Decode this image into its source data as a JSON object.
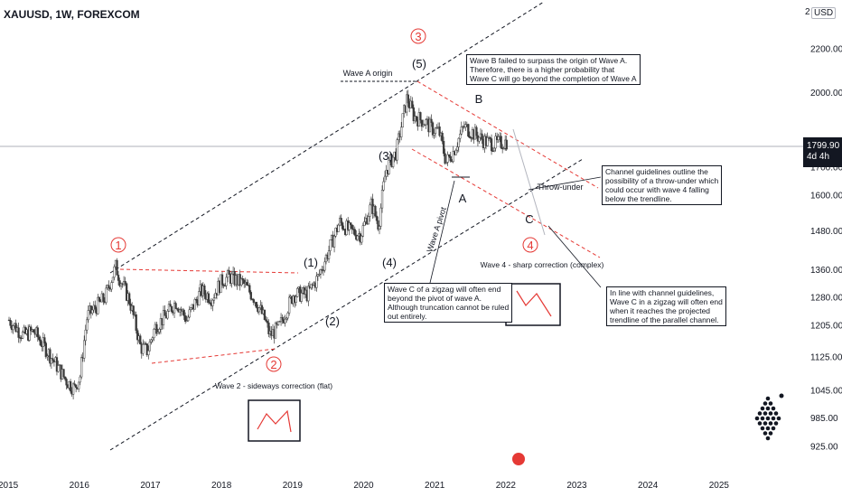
{
  "header": {
    "symbol": "XAUUSD, 1W, FOREXCOM",
    "currency": "USD",
    "currency_prefix": "2"
  },
  "price_badge": {
    "price": "1799.90",
    "countdown": "4d 4h"
  },
  "colors": {
    "candle_up": "#26a69a",
    "candle": "#3a3a3a",
    "red_label": "#e53935",
    "dashed_black": "#131722",
    "dashed_red": "#e53935"
  },
  "chart_data": {
    "type": "line",
    "title": "",
    "x_ticks": [
      "2015",
      "2016",
      "2017",
      "2018",
      "2019",
      "2020",
      "2021",
      "2022",
      "2023",
      "2024",
      "2025"
    ],
    "y_ticks": [
      925,
      985,
      1045,
      1125,
      1205,
      1280,
      1360,
      1480,
      1600,
      1700,
      1800,
      2000,
      2200
    ],
    "y_scale": "log",
    "ylim": [
      880,
      2450
    ],
    "xlim": [
      2015.0,
      2026.3
    ],
    "series": [
      {
        "x": [
          2015.0,
          2015.1,
          2015.2,
          2015.35,
          2015.5,
          2015.65,
          2015.8,
          2015.92,
          2016.0,
          2016.1,
          2016.2,
          2016.35,
          2016.5,
          2016.55,
          2016.7,
          2016.85,
          2016.95,
          2017.05,
          2017.2,
          2017.35,
          2017.5,
          2017.6,
          2017.7,
          2017.85,
          2018.0,
          2018.1,
          2018.3,
          2018.45,
          2018.6,
          2018.67,
          2018.8,
          2019.0,
          2019.2,
          2019.35,
          2019.5,
          2019.65,
          2019.8,
          2019.95,
          2020.1,
          2020.2,
          2020.3,
          2020.45,
          2020.6,
          2020.7,
          2020.85,
          2020.95,
          2021.05,
          2021.15,
          2021.25,
          2021.4,
          2021.55,
          2021.7,
          2021.85,
          2022.0
        ],
        "y": [
          1220,
          1200,
          1180,
          1190,
          1150,
          1110,
          1070,
          1050,
          1080,
          1230,
          1250,
          1280,
          1370,
          1340,
          1270,
          1150,
          1140,
          1200,
          1230,
          1270,
          1220,
          1260,
          1300,
          1280,
          1330,
          1340,
          1320,
          1280,
          1220,
          1180,
          1200,
          1290,
          1290,
          1340,
          1420,
          1510,
          1480,
          1470,
          1570,
          1500,
          1690,
          1760,
          1980,
          1900,
          1880,
          1850,
          1840,
          1720,
          1760,
          1860,
          1830,
          1800,
          1790,
          1800
        ]
      }
    ]
  },
  "labels": {
    "circ1": "1",
    "circ2": "2",
    "circ3": "3",
    "circ4": "4",
    "w5": "(5)",
    "w1": "(1)",
    "w2": "(2)",
    "w3": "(3)",
    "w4": "(4)",
    "A": "A",
    "B": "B",
    "C": "C",
    "wave_a_origin": "Wave A origin",
    "wave_a_pivot": "Wave A pivot",
    "throw_under": "Throw-under",
    "wave2_caption": "Wave 2 - sideways correction (flat)",
    "wave4_caption": "Wave 4 - sharp correction (complex)"
  },
  "notes": {
    "waveB": "Wave B failed to surpass the origin of Wave A.\nTherefore, there is a higher probability that\nWave C will go beyond the completion of Wave A",
    "channel": "Channel guidelines outline the\npossibility of a throw-under which\ncould occur with wave 4 falling\nbelow the trendline.",
    "zigzag": "Wave C of a zigzag will often end\nbeyond the pivot of wave A.\nAlthough truncation cannot be ruled\nout entirely.",
    "inline": "In line with channel guidelines,\nWave C in a zigzag will often end\nwhen it reaches the projected\ntrendline of the parallel channel."
  }
}
